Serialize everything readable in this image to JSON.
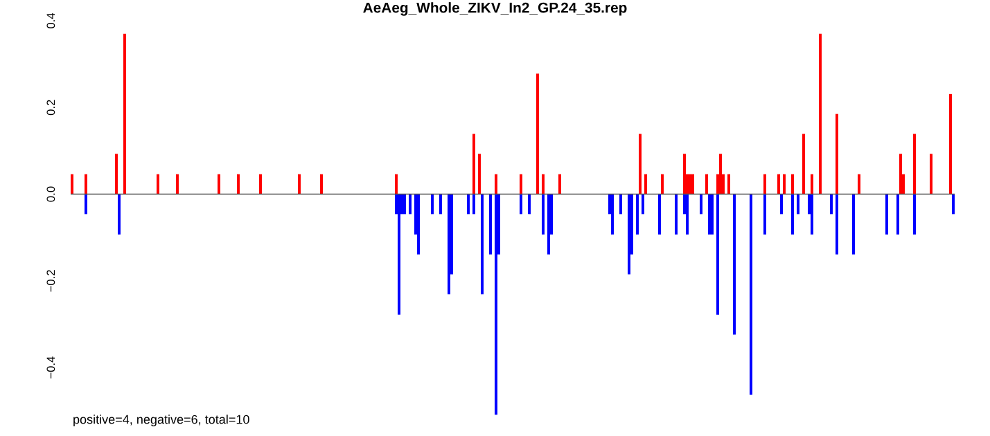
{
  "chart_data": {
    "type": "bar",
    "title": "AeAeg_Whole_ZIKV_In2_GP.24_35.rep",
    "categories": [
      null,
      null,
      null,
      null,
      null,
      null,
      null,
      null,
      null,
      null,
      null,
      null,
      null,
      null,
      null,
      null,
      null,
      null,
      null,
      null,
      null,
      null,
      null,
      null,
      null,
      null,
      null,
      null,
      null,
      null,
      null,
      null,
      null,
      null,
      null,
      null,
      null,
      null,
      null,
      null,
      null,
      null,
      null,
      null,
      null,
      null,
      null,
      null,
      null,
      null,
      null,
      null,
      null,
      null,
      null,
      null,
      null,
      null,
      null,
      null,
      null,
      null,
      null,
      null,
      null,
      null,
      null,
      null,
      null,
      null,
      null,
      null,
      null,
      null,
      null,
      null,
      null,
      null,
      null,
      null,
      null,
      null,
      null,
      null,
      null,
      null,
      null,
      null,
      null,
      null,
      null,
      null,
      null,
      null,
      null,
      null,
      null,
      null,
      null,
      null,
      null,
      null,
      null,
      null,
      null,
      null,
      null,
      null,
      null,
      null,
      null,
      null,
      null,
      null,
      null,
      null,
      null,
      null,
      null,
      null,
      null,
      null,
      null,
      null,
      null,
      null,
      null,
      null,
      null,
      null,
      null,
      null,
      null,
      null,
      null,
      null,
      null,
      null,
      null,
      null,
      null,
      null,
      null,
      null,
      null,
      null,
      null,
      null,
      null,
      null,
      null,
      null,
      null,
      null,
      null,
      null,
      null,
      null,
      null,
      null,
      null,
      null,
      null,
      null,
      null,
      null,
      null,
      null,
      null,
      null,
      null,
      null,
      null,
      null,
      null,
      null,
      null,
      null,
      null,
      null,
      null,
      null,
      null,
      null,
      null,
      null,
      null,
      null,
      null,
      null,
      null,
      null,
      null,
      null,
      null,
      null,
      null,
      null,
      null,
      null,
      null,
      null,
      null,
      null,
      null,
      null,
      null,
      null,
      null,
      null,
      null,
      null,
      null,
      null,
      null,
      null,
      null,
      null,
      null,
      null,
      null,
      null,
      null,
      null,
      null,
      null,
      null,
      null,
      null,
      null,
      null,
      null,
      null,
      null,
      null,
      null,
      null,
      null,
      null,
      null,
      null,
      null,
      null,
      null,
      null,
      null,
      null,
      null,
      null,
      null,
      null,
      null,
      null,
      null,
      null,
      null,
      null,
      null,
      null,
      null,
      null,
      null,
      null,
      null,
      null,
      null,
      null,
      null,
      null,
      null,
      null,
      null,
      null,
      null,
      null,
      null,
      null,
      null,
      null,
      null,
      null,
      null,
      null,
      null,
      null,
      null,
      null,
      null,
      null,
      null,
      null,
      null,
      null,
      null,
      null,
      null,
      null,
      null,
      null,
      null,
      null,
      null,
      null,
      null,
      null,
      null,
      null,
      null,
      null,
      null,
      null,
      null,
      null,
      null,
      null,
      null,
      null,
      null,
      null
    ],
    "series": [
      {
        "color": "#ff0000",
        "values": [
          0.046,
          null,
          null,
          null,
          null,
          0.046,
          null,
          null,
          null,
          null,
          null,
          null,
          null,
          null,
          null,
          null,
          0.093,
          null,
          null,
          0.37,
          null,
          null,
          null,
          null,
          null,
          null,
          null,
          null,
          null,
          null,
          null,
          0.046,
          null,
          null,
          null,
          null,
          null,
          null,
          0.046,
          null,
          null,
          null,
          null,
          null,
          null,
          null,
          null,
          null,
          null,
          null,
          null,
          null,
          null,
          0.046,
          null,
          null,
          null,
          null,
          null,
          null,
          0.046,
          null,
          null,
          null,
          null,
          null,
          null,
          null,
          0.046,
          null,
          null,
          null,
          null,
          null,
          null,
          null,
          null,
          null,
          null,
          null,
          null,
          null,
          0.046,
          null,
          null,
          null,
          null,
          null,
          null,
          null,
          0.046,
          null,
          null,
          null,
          null,
          null,
          null,
          null,
          null,
          null,
          null,
          null,
          null,
          null,
          null,
          null,
          null,
          null,
          null,
          null,
          null,
          null,
          null,
          null,
          null,
          null,
          null,
          0.046,
          null,
          null,
          null,
          null,
          null,
          null,
          null,
          null,
          null,
          null,
          null,
          null,
          null,
          null,
          null,
          null,
          null,
          null,
          null,
          null,
          null,
          null,
          null,
          null,
          null,
          null,
          null,
          0.139,
          null,
          0.093,
          null,
          null,
          null,
          null,
          null,
          0.046,
          null,
          null,
          null,
          null,
          null,
          null,
          null,
          null,
          0.046,
          null,
          null,
          null,
          null,
          null,
          0.278,
          null,
          0.046,
          null,
          null,
          null,
          null,
          null,
          0.046,
          null,
          null,
          null,
          null,
          null,
          null,
          null,
          null,
          null,
          null,
          null,
          null,
          null,
          null,
          null,
          null,
          null,
          null,
          null,
          null,
          null,
          null,
          null,
          null,
          null,
          null,
          null,
          null,
          0.139,
          null,
          0.046,
          null,
          null,
          null,
          null,
          null,
          0.046,
          null,
          null,
          null,
          null,
          null,
          null,
          null,
          0.093,
          0.046,
          0.046,
          0.046,
          null,
          null,
          null,
          null,
          0.046,
          null,
          null,
          null,
          0.046,
          0.093,
          0.046,
          null,
          0.046,
          null,
          null,
          null,
          null,
          null,
          null,
          null,
          null,
          null,
          null,
          null,
          null,
          0.046,
          null,
          null,
          null,
          null,
          0.046,
          null,
          0.046,
          null,
          null,
          0.046,
          null,
          null,
          null,
          0.139,
          null,
          null,
          0.046,
          null,
          null,
          0.37,
          null,
          null,
          null,
          null,
          null,
          0.185,
          null,
          null,
          null,
          null,
          null,
          null,
          null,
          0.046,
          null,
          null,
          null,
          null,
          null,
          null,
          null,
          null,
          null,
          null,
          null,
          null,
          null,
          null,
          0.093,
          0.046,
          null,
          null,
          null,
          0.139,
          null,
          null,
          null,
          null,
          null,
          0.093,
          null,
          null,
          null,
          null,
          null,
          null,
          0.231,
          null
        ]
      },
      {
        "color": "#0000ff",
        "values": [
          null,
          null,
          null,
          null,
          null,
          -0.046,
          null,
          null,
          null,
          null,
          null,
          null,
          null,
          null,
          null,
          null,
          null,
          -0.093,
          null,
          null,
          null,
          null,
          null,
          null,
          null,
          null,
          null,
          null,
          null,
          null,
          null,
          null,
          null,
          null,
          null,
          null,
          null,
          null,
          null,
          null,
          null,
          null,
          null,
          null,
          null,
          null,
          null,
          null,
          null,
          null,
          null,
          null,
          null,
          null,
          null,
          null,
          null,
          null,
          null,
          null,
          null,
          null,
          null,
          null,
          null,
          null,
          null,
          null,
          null,
          null,
          null,
          null,
          null,
          null,
          null,
          null,
          null,
          null,
          null,
          null,
          null,
          null,
          null,
          null,
          null,
          null,
          null,
          null,
          null,
          null,
          null,
          null,
          null,
          null,
          null,
          null,
          null,
          null,
          null,
          null,
          null,
          null,
          null,
          null,
          null,
          null,
          null,
          null,
          null,
          null,
          null,
          null,
          null,
          null,
          null,
          null,
          null,
          -0.046,
          -0.278,
          -0.046,
          -0.046,
          null,
          -0.046,
          null,
          -0.093,
          -0.139,
          null,
          null,
          null,
          null,
          -0.046,
          null,
          null,
          -0.046,
          null,
          null,
          -0.231,
          -0.185,
          null,
          null,
          null,
          null,
          null,
          -0.046,
          null,
          -0.046,
          null,
          null,
          -0.231,
          null,
          null,
          -0.139,
          null,
          -0.509,
          -0.139,
          null,
          null,
          null,
          null,
          null,
          null,
          null,
          -0.046,
          null,
          null,
          -0.046,
          null,
          null,
          null,
          null,
          -0.093,
          null,
          -0.139,
          -0.093,
          null,
          null,
          null,
          null,
          null,
          null,
          null,
          null,
          null,
          null,
          null,
          null,
          null,
          null,
          null,
          null,
          null,
          null,
          null,
          null,
          -0.046,
          -0.093,
          null,
          null,
          -0.046,
          null,
          null,
          -0.185,
          -0.139,
          null,
          -0.093,
          null,
          -0.046,
          null,
          null,
          null,
          null,
          null,
          -0.093,
          null,
          null,
          null,
          null,
          null,
          -0.093,
          null,
          null,
          -0.046,
          -0.093,
          null,
          null,
          null,
          null,
          -0.046,
          null,
          null,
          -0.093,
          -0.093,
          null,
          -0.278,
          null,
          null,
          null,
          null,
          null,
          -0.324,
          null,
          null,
          null,
          null,
          null,
          -0.463,
          null,
          null,
          null,
          null,
          -0.093,
          null,
          null,
          null,
          null,
          null,
          -0.046,
          null,
          null,
          null,
          -0.093,
          null,
          -0.046,
          null,
          null,
          null,
          -0.046,
          -0.093,
          null,
          null,
          null,
          null,
          null,
          null,
          -0.046,
          null,
          -0.139,
          null,
          null,
          null,
          null,
          null,
          -0.139,
          null,
          null,
          null,
          null,
          null,
          null,
          null,
          null,
          null,
          null,
          null,
          -0.093,
          null,
          null,
          null,
          -0.093,
          null,
          null,
          null,
          null,
          null,
          -0.093,
          null,
          null,
          null,
          null,
          null,
          null,
          null,
          null,
          null,
          null,
          null,
          null,
          null,
          -0.046
        ]
      }
    ],
    "ylim": [
      -0.51,
      0.4
    ],
    "yticks": [
      {
        "value": -0.4,
        "label": "−0.4"
      },
      {
        "value": -0.2,
        "label": "−0.2"
      },
      {
        "value": 0,
        "label": "0.0"
      },
      {
        "value": 0.2,
        "label": "0.2"
      },
      {
        "value": 0.4,
        "label": "0.4"
      }
    ],
    "ref_lines": [
      {
        "axis": "y",
        "value": 0,
        "color": "#555555"
      }
    ],
    "annotations": [
      "positive=4, negative=6, total=10"
    ],
    "tick_labels": "y"
  }
}
